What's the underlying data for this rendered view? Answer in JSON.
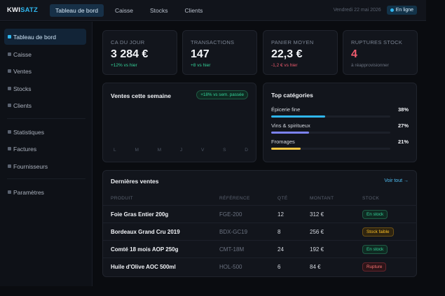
{
  "app": {
    "logo_a": "KWI",
    "logo_b": "SATZ"
  },
  "topnav": [
    {
      "label": "Tableau de bord",
      "active": true
    },
    {
      "label": "Caisse",
      "active": false
    },
    {
      "label": "Stocks",
      "active": false
    },
    {
      "label": "Clients",
      "active": false
    }
  ],
  "header": {
    "date": "Vendredi 22 mai 2026",
    "status": "En ligne"
  },
  "sidebar": {
    "items": [
      {
        "label": "Tableau de bord"
      },
      {
        "label": "Caisse"
      },
      {
        "label": "Ventes"
      },
      {
        "label": "Stocks"
      },
      {
        "label": "Clients"
      },
      {
        "label": "Statistiques"
      },
      {
        "label": "Factures"
      },
      {
        "label": "Fournisseurs"
      },
      {
        "label": "Paramètres"
      }
    ]
  },
  "kpis": [
    {
      "label": "CA DU JOUR",
      "value": "3 284 €",
      "delta": "+12% vs hier"
    },
    {
      "label": "TRANSACTIONS",
      "value": "147",
      "delta": "+8 vs hier"
    },
    {
      "label": "PANIER MOYEN",
      "value": "22,3 €",
      "delta": "-1,2 € vs hier"
    },
    {
      "label": "RUPTURES STOCK",
      "value": "4",
      "delta": "à réapprovisionner"
    }
  ],
  "weekly": {
    "title": "Ventes cette semaine",
    "badge": "+18% vs sem. passée",
    "days": [
      "L",
      "M",
      "M",
      "J",
      "V",
      "S",
      "D"
    ]
  },
  "categories": {
    "title": "Top catégories",
    "items": [
      {
        "name": "Épicerie fine",
        "pct": "38%",
        "share": 0.38,
        "color": "#2fb6ee"
      },
      {
        "name": "Vins & spiritueux",
        "pct": "27%",
        "share": 0.27,
        "color": "#7c83f2"
      },
      {
        "name": "Fromages",
        "pct": "21%",
        "share": 0.21,
        "color": "#f5c542"
      }
    ]
  },
  "sales": {
    "title": "Dernières ventes",
    "link": "Voir tout →",
    "columns": [
      "PRODUIT",
      "RÉFÉRENCE",
      "QTÉ",
      "MONTANT",
      "STOCK"
    ],
    "rows": [
      {
        "product": "Foie Gras Entier 200g",
        "ref": "FGE-200",
        "qty": "12",
        "amount": "312 €",
        "stock": "En stock"
      },
      {
        "product": "Bordeaux Grand Cru 2019",
        "ref": "BDX-GC19",
        "qty": "8",
        "amount": "256 €",
        "stock": "Stock faible"
      },
      {
        "product": "Comté 18 mois AOP 250g",
        "ref": "CMT-18M",
        "qty": "24",
        "amount": "192 €",
        "stock": "En stock"
      },
      {
        "product": "Huile d'Olive AOC 500ml",
        "ref": "HOL-500",
        "qty": "6",
        "amount": "84 €",
        "stock": "Rupture"
      }
    ]
  }
}
